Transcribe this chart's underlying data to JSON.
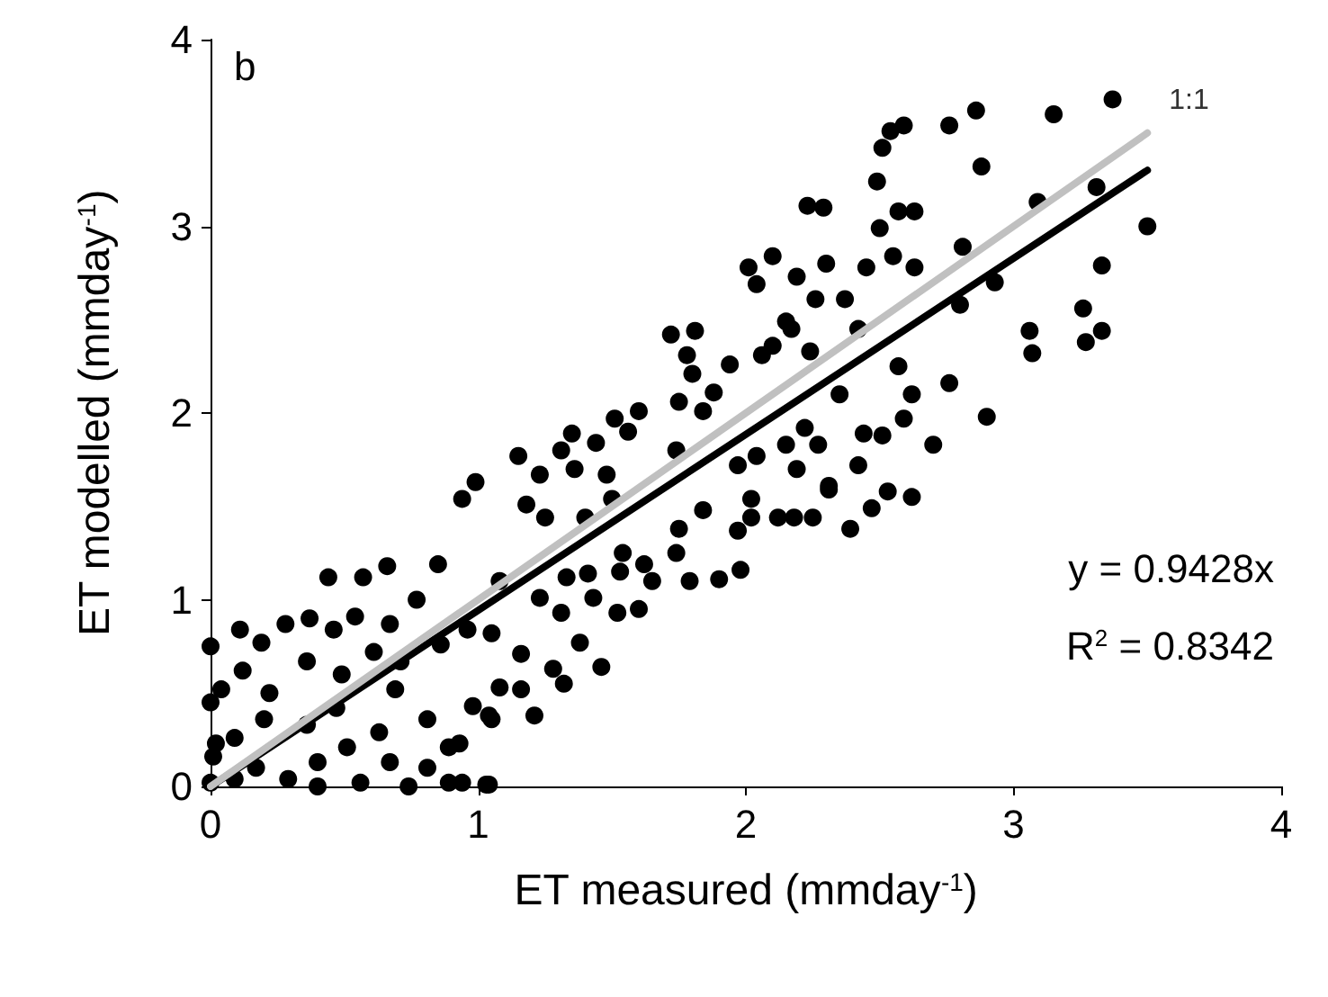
{
  "chart_data": {
    "type": "scatter",
    "xlabel": "ET measured (mmday$^{-1}$)",
    "ylabel": "ET modelled (mmday$^{-1}$)",
    "xlim": [
      0,
      4
    ],
    "ylim": [
      0,
      4
    ],
    "xticks": [
      0,
      1,
      2,
      3,
      4
    ],
    "yticks": [
      0,
      1,
      2,
      3,
      4
    ],
    "grid": false,
    "legend": false,
    "annotations": [
      "b",
      "y = 0.9428x",
      "R$^{2}$ = 0.8342"
    ],
    "series": [
      {
        "color": "#000000",
        "marker": "circle",
        "x": [
          3.37,
          3.15,
          2.86,
          2.76,
          2.59,
          2.54,
          2.51,
          2.88,
          2.49,
          3.31,
          3.09,
          2.23,
          2.29,
          2.57,
          2.63,
          2.5,
          3.5,
          2.81,
          2.1,
          2.55,
          2.3,
          2.01,
          2.63,
          2.45,
          3.33,
          2.19,
          2.04,
          2.26,
          2.37,
          2.8,
          2.93,
          3.26,
          3.33,
          3.27,
          3.06,
          3.07,
          2.15,
          2.42,
          2.1,
          2.24,
          1.94,
          2.57,
          2.76,
          2.62,
          2.35,
          2.9,
          2.59,
          2.44,
          2.51,
          2.7,
          2.22,
          2.27,
          2.04,
          2.19,
          2.42,
          2.31,
          2.53,
          2.62,
          2.47,
          2.18,
          2.25,
          2.39,
          1.97,
          2.02,
          1.72,
          1.81,
          1.78,
          1.8,
          2.06,
          2.17,
          1.75,
          1.88,
          1.84,
          1.6,
          1.51,
          1.35,
          1.44,
          1.56,
          1.31,
          1.36,
          1.48,
          1.23,
          1.15,
          0.99,
          0.94,
          1.18,
          1.25,
          1.4,
          1.5,
          1.74,
          1.97,
          2.15,
          2.31,
          2.12,
          2.02,
          1.84,
          1.75,
          1.74,
          1.98,
          1.9,
          1.79,
          1.65,
          1.62,
          1.54,
          1.53,
          1.41,
          1.33,
          1.43,
          1.52,
          1.6,
          1.31,
          1.23,
          1.08,
          1.05,
          1.16,
          1.28,
          1.38,
          1.46,
          1.32,
          1.08,
          1.04,
          1.21,
          0.93,
          0.94,
          1.04,
          0.44,
          0.66,
          0.57,
          0.85,
          0.0,
          0.11,
          0.19,
          0.28,
          0.37,
          0.46,
          0.54,
          0.67,
          0.77,
          0.61,
          0.36,
          0.12,
          0.49,
          0.71,
          0.96,
          0.86,
          0.0,
          0.22,
          0.04,
          0.47,
          0.69,
          0.98,
          0.2,
          0.09,
          0.02,
          0.36,
          0.63,
          0.81,
          0.89,
          1.05,
          1.16,
          0.51,
          0.17,
          0.4,
          0.67,
          0.81,
          0.09,
          0.29,
          0.56,
          0.89,
          1.03,
          0.74,
          0.4,
          0.0,
          0.01
        ],
        "values": [
          3.68,
          3.6,
          3.62,
          3.54,
          3.54,
          3.51,
          3.42,
          3.32,
          3.24,
          3.21,
          3.13,
          3.11,
          3.1,
          3.08,
          3.08,
          2.99,
          3.0,
          2.89,
          2.84,
          2.84,
          2.8,
          2.78,
          2.78,
          2.78,
          2.79,
          2.73,
          2.69,
          2.61,
          2.61,
          2.58,
          2.7,
          2.56,
          2.44,
          2.38,
          2.44,
          2.32,
          2.49,
          2.45,
          2.36,
          2.33,
          2.26,
          2.25,
          2.16,
          2.1,
          2.1,
          1.98,
          1.97,
          1.89,
          1.88,
          1.83,
          1.92,
          1.83,
          1.77,
          1.7,
          1.72,
          1.61,
          1.58,
          1.55,
          1.49,
          1.44,
          1.44,
          1.38,
          1.37,
          1.54,
          2.42,
          2.44,
          2.31,
          2.21,
          2.31,
          2.45,
          2.06,
          2.11,
          2.01,
          2.01,
          1.97,
          1.89,
          1.84,
          1.9,
          1.8,
          1.7,
          1.67,
          1.67,
          1.77,
          1.63,
          1.54,
          1.51,
          1.44,
          1.44,
          1.54,
          1.8,
          1.72,
          1.83,
          1.59,
          1.44,
          1.44,
          1.48,
          1.38,
          1.25,
          1.16,
          1.11,
          1.1,
          1.1,
          1.19,
          1.25,
          1.15,
          1.14,
          1.12,
          1.01,
          0.93,
          0.95,
          0.93,
          1.01,
          1.1,
          0.82,
          0.71,
          0.63,
          0.77,
          0.64,
          0.55,
          0.53,
          0.38,
          0.38,
          0.23,
          0.02,
          0.01,
          1.12,
          1.18,
          1.12,
          1.19,
          0.75,
          0.84,
          0.77,
          0.87,
          0.9,
          0.84,
          0.91,
          0.87,
          1.0,
          0.72,
          0.67,
          0.62,
          0.6,
          0.67,
          0.84,
          0.76,
          0.45,
          0.5,
          0.52,
          0.42,
          0.52,
          0.43,
          0.36,
          0.26,
          0.23,
          0.33,
          0.29,
          0.36,
          0.21,
          0.36,
          0.52,
          0.21,
          0.1,
          0.13,
          0.13,
          0.1,
          0.04,
          0.04,
          0.02,
          0.02,
          0.01,
          0.0,
          0.0,
          0.02,
          0.16
        ]
      },
      {
        "type": "line",
        "color": "#000000",
        "marker": "none",
        "line_style": "solid",
        "x": [
          0,
          3.5
        ],
        "values": [
          0,
          3.3
        ]
      },
      {
        "type": "line",
        "name": "1:1",
        "color": "#c0c0c0",
        "marker": "none",
        "line_style": "solid",
        "x": [
          0,
          3.5
        ],
        "values": [
          0,
          3.5
        ]
      }
    ]
  }
}
